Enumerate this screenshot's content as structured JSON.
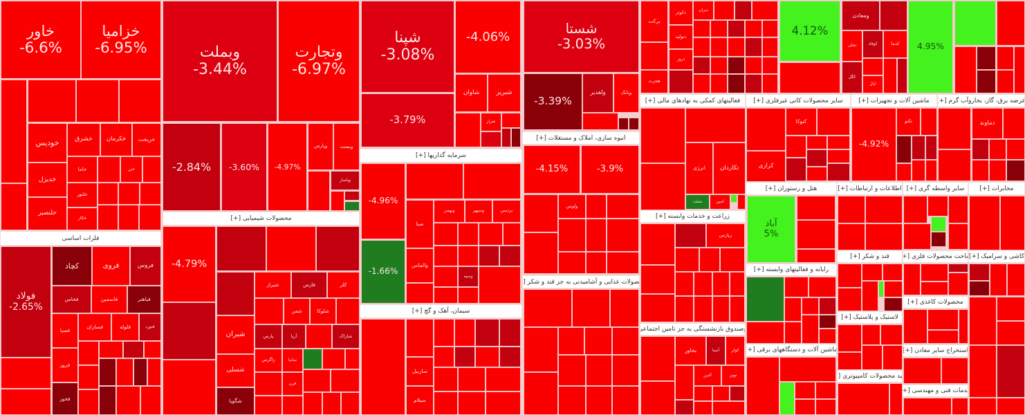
{
  "colors": {
    "r": "#fb0000",
    "m": "#dc0010",
    "d": "#c2000e",
    "x": "#8a0008",
    "g": "#1f7d1f",
    "l": "#44f21e"
  },
  "headers": [
    "فلزات اساسی",
    "محصولات شیمیایی [+]",
    "سرمایه گذاریها [+]",
    "سیمان، آهک و گچ [+]",
    "انبوه سازی، املاک و مستغلات [+]",
    "محصولات غذایی و آشامیدنی به جز قند و شکر [+]",
    "فعالیتهای کمکی به نهادهای مالی [+]",
    "سایر محصولات کانی غیرفلزی [+]",
    "ماشین آلات و تجهیزات [+]",
    "عرضه برق، گاز، بخاروآب گرم [+]",
    "هتل و رستوران [+]",
    "اطلاعات و ارتباطات [+]",
    "سایر واسطه گری [+]",
    "مخابرات [+]",
    "زراعت و خدمات وابسته [+]",
    "رایانه و فعالیتهای وابسته [+]",
    "قند و شکر [+]",
    "ساخت محصولات فلزی [+]",
    "کاشی و سرامیک [+]",
    "محصولات کاغذی [+]",
    "بیمه وصندوق بازنشستگی به جز تامین اجتماعی [+]",
    "ماشین آلات و دستگاههای برقی [+]",
    "لاستیک و پلاستیک [+]",
    "تولید محصولات کامپیوتری [+]",
    "استخراج سایر معادن [+]",
    "خدمات فنی و مهندسی [+]"
  ],
  "tiles": [
    [
      "خاور",
      "-6.6%",
      "r"
    ],
    [
      "خزامیا",
      "-6.95%",
      "r"
    ],
    [
      "",
      "",
      "r"
    ],
    [
      "",
      "",
      "r"
    ],
    [
      "",
      "",
      "r"
    ],
    [
      "",
      "",
      "r"
    ],
    [
      "",
      "",
      "r"
    ],
    [
      "خودیس",
      "",
      "r"
    ],
    [
      "خشرق",
      "",
      "r"
    ],
    [
      "خکرمان",
      "",
      "r"
    ],
    [
      "خریخت",
      "",
      "r"
    ],
    [
      "خدیزل",
      "",
      "r"
    ],
    [
      "خاما",
      "",
      "r"
    ],
    [
      "",
      "",
      "r"
    ],
    [
      "خزر",
      "",
      "r"
    ],
    [
      "",
      "",
      "r"
    ],
    [
      "خلنصیر",
      "",
      "r"
    ],
    [
      "خلتور",
      "",
      "r"
    ],
    [
      "خکار",
      "",
      "r"
    ],
    [
      "",
      "",
      "r"
    ],
    [
      "",
      "",
      "r"
    ],
    [
      "",
      "",
      "r"
    ],
    [
      "",
      "",
      "r"
    ],
    [
      "",
      "",
      "r"
    ],
    [
      "",
      "",
      "r"
    ],
    [
      "فولاد",
      "-2.65%",
      "d"
    ],
    [
      "",
      "",
      "r"
    ],
    [
      "",
      "",
      "r"
    ],
    [
      "کچاد",
      "",
      "x"
    ],
    [
      "فروی",
      "",
      "r"
    ],
    [
      "فروس",
      "",
      "d"
    ],
    [
      "فخاس",
      "",
      "d"
    ],
    [
      "فاسمین",
      "",
      "r"
    ],
    [
      "فباهنر",
      "",
      "x"
    ],
    [
      "فسپا",
      "",
      "r"
    ],
    [
      "فسازان",
      "",
      "r"
    ],
    [
      "فلوله",
      "",
      "r"
    ],
    [
      "فنورد",
      "",
      "d"
    ],
    [
      "فروز",
      "",
      "r"
    ],
    [
      "فخوز",
      "",
      "x"
    ],
    [
      "",
      "",
      "r"
    ],
    [
      "",
      "",
      "r"
    ],
    [
      "",
      "",
      "d"
    ],
    [
      "",
      "",
      "r"
    ],
    [
      "",
      "",
      "x"
    ],
    [
      "",
      "",
      "r"
    ],
    [
      "",
      "",
      "x"
    ],
    [
      "",
      "",
      "r"
    ],
    [
      "",
      "",
      "r"
    ],
    [
      "",
      "",
      "r"
    ],
    [
      "",
      "",
      "x"
    ],
    [
      "",
      "",
      "r"
    ],
    [
      "",
      "",
      "r"
    ],
    [
      "وبملت",
      "-3.44%",
      "m"
    ],
    [
      "وتجارت",
      "-6.97%",
      "r"
    ],
    [
      "",
      "-2.84%",
      "d"
    ],
    [
      "",
      "-3.60%",
      "m"
    ],
    [
      "",
      "-4.97%",
      "r"
    ],
    [
      "وپارس",
      "",
      "r"
    ],
    [
      "وبست",
      "",
      "r"
    ],
    [
      "",
      "",
      "r"
    ],
    [
      "وپاسار",
      "",
      "d"
    ],
    [
      "",
      "",
      "r"
    ],
    [
      "",
      "",
      "d"
    ],
    [
      "",
      "",
      "g"
    ],
    [
      "",
      "-4.79%",
      "r"
    ],
    [
      "",
      "",
      "d"
    ],
    [
      "",
      "",
      "r"
    ],
    [
      "",
      "",
      "d"
    ],
    [
      "",
      "",
      "r"
    ],
    [
      "",
      "",
      "d"
    ],
    [
      "",
      "",
      "d"
    ],
    [
      "شیراز",
      "",
      "r"
    ],
    [
      "فارس",
      "",
      "d"
    ],
    [
      "کلر",
      "",
      "r"
    ],
    [
      "شیران",
      "",
      "r"
    ],
    [
      "شسلی",
      "",
      "r"
    ],
    [
      "شگویا",
      "",
      "x"
    ],
    [
      "",
      "",
      "r"
    ],
    [
      "شفن",
      "",
      "r"
    ],
    [
      "شلوکا",
      "",
      "r"
    ],
    [
      "",
      "",
      "r"
    ],
    [
      "پارس",
      "",
      "d"
    ],
    [
      "آریا",
      "",
      "d"
    ],
    [
      "",
      "",
      "r"
    ],
    [
      "شاراک",
      "",
      "d"
    ],
    [
      "زاگرس",
      "",
      "r"
    ],
    [
      "ساینا",
      "",
      "r"
    ],
    [
      "",
      "",
      "g"
    ],
    [
      "",
      "",
      "r"
    ],
    [
      "",
      "",
      "r"
    ],
    [
      "",
      "",
      "r"
    ],
    [
      "فرن",
      "",
      "r"
    ],
    [
      "",
      "",
      "r"
    ],
    [
      "",
      "",
      "r"
    ],
    [
      "",
      "",
      "r"
    ],
    [
      "",
      "",
      "r"
    ],
    [
      "",
      "",
      "r"
    ],
    [
      "",
      "",
      "r"
    ],
    [
      "",
      "",
      "r"
    ],
    [
      "شپنا",
      "-3.08%",
      "m"
    ],
    [
      "",
      "-4.06%",
      "r"
    ],
    [
      "شاوان",
      "",
      "r"
    ],
    [
      "شبریز",
      "",
      "r"
    ],
    [
      "",
      "-3.79%",
      "m"
    ],
    [
      "",
      "",
      "r"
    ],
    [
      "شراز",
      "",
      "r"
    ],
    [
      "",
      "",
      "r"
    ],
    [
      "",
      "",
      "m"
    ],
    [
      "",
      "",
      "d"
    ],
    [
      "",
      "",
      "x"
    ],
    [
      "",
      "-4.96%",
      "r"
    ],
    [
      "",
      "-1.66%",
      "g"
    ],
    [
      "",
      "",
      "r"
    ],
    [
      "",
      "",
      "r"
    ],
    [
      "صبا",
      "",
      "r"
    ],
    [
      "وبهمن",
      "",
      "r"
    ],
    [
      "وسپهر",
      "",
      "r"
    ],
    [
      "بردیس",
      "",
      "r"
    ],
    [
      "",
      "",
      "r"
    ],
    [
      "",
      "",
      "r"
    ],
    [
      "",
      "",
      "r"
    ],
    [
      "",
      "",
      "r"
    ],
    [
      "والماس",
      "",
      "r"
    ],
    [
      "",
      "",
      "r"
    ],
    [
      "",
      "",
      "r"
    ],
    [
      "",
      "",
      "d"
    ],
    [
      "",
      "",
      "d"
    ],
    [
      "",
      "",
      "r"
    ],
    [
      "وسپه",
      "",
      "d"
    ],
    [
      "",
      "",
      "r"
    ],
    [
      "",
      "",
      "r"
    ],
    [
      "",
      "",
      "r"
    ],
    [
      "",
      "",
      "r"
    ],
    [
      "",
      "",
      "r"
    ],
    [
      "",
      "",
      "r"
    ],
    [
      "",
      "",
      "r"
    ],
    [
      "",
      "",
      "r"
    ],
    [
      "",
      "",
      "d"
    ],
    [
      "",
      "",
      "d"
    ],
    [
      "",
      "",
      "r"
    ],
    [
      "",
      "",
      "d"
    ],
    [
      "",
      "",
      "r"
    ],
    [
      "",
      "",
      "d"
    ],
    [
      "ساربیل",
      "",
      "r"
    ],
    [
      "سیلام",
      "",
      "r"
    ],
    [
      "",
      "",
      "r"
    ],
    [
      "",
      "",
      "r"
    ],
    [
      "",
      "",
      "r"
    ],
    [
      "",
      "",
      "r"
    ],
    [
      "",
      "",
      "r"
    ],
    [
      "",
      "",
      "r"
    ],
    [
      "شستا",
      "-3.03%",
      "m"
    ],
    [
      "",
      "-3.39%",
      "x"
    ],
    [
      "ولغدیر",
      "",
      "d"
    ],
    [
      "وبانک",
      "",
      "r"
    ],
    [
      "",
      "",
      "r"
    ],
    [
      "",
      "",
      "x"
    ],
    [
      "",
      "",
      "x"
    ],
    [
      "",
      "-4.15%",
      "r"
    ],
    [
      "",
      "-3.9%",
      "r"
    ],
    [
      "",
      "",
      "r"
    ],
    [
      "",
      "",
      "r"
    ],
    [
      "ولوس",
      "",
      "r"
    ],
    [
      "",
      "",
      "r"
    ],
    [
      "",
      "",
      "r"
    ],
    [
      "",
      "",
      "r"
    ],
    [
      "",
      "",
      "r"
    ],
    [
      "",
      "",
      "r"
    ],
    [
      "",
      "",
      "r"
    ],
    [
      "",
      "",
      "r"
    ],
    [
      "",
      "",
      "r"
    ],
    [
      "",
      "",
      "r"
    ],
    [
      "",
      "",
      "r"
    ],
    [
      "",
      "",
      "r"
    ],
    [
      "",
      "",
      "r"
    ],
    [
      "",
      "",
      "r"
    ],
    [
      "",
      "",
      "r"
    ],
    [
      "",
      "",
      "r"
    ],
    [
      "",
      "",
      "r"
    ],
    [
      "",
      "",
      "r"
    ],
    [
      "",
      "",
      "r"
    ],
    [
      "",
      "",
      "r"
    ],
    [
      "",
      "",
      "r"
    ],
    [
      "",
      "",
      "r"
    ],
    [
      "",
      "",
      "r"
    ],
    [
      "برکت",
      "",
      "r"
    ],
    [
      "",
      "",
      "r"
    ],
    [
      "هجرت",
      "",
      "r"
    ],
    [
      "دکوثر",
      "",
      "r"
    ],
    [
      "دتولید",
      "",
      "r"
    ],
    [
      "دروز",
      "",
      "r"
    ],
    [
      "",
      "",
      "d"
    ],
    [
      "دیران",
      "",
      "r"
    ],
    [
      "",
      "",
      "r"
    ],
    [
      "",
      "",
      "d"
    ],
    [
      "",
      "",
      "r"
    ],
    [
      "",
      "",
      "r"
    ],
    [
      "",
      "",
      "r"
    ],
    [
      "",
      "",
      "d"
    ],
    [
      "",
      "",
      "r"
    ],
    [
      "",
      "",
      "r"
    ],
    [
      "",
      "",
      "r"
    ],
    [
      "",
      "",
      "r"
    ],
    [
      "",
      "",
      "r"
    ],
    [
      "",
      "",
      "d"
    ],
    [
      "",
      "",
      "r"
    ],
    [
      "",
      "",
      "d"
    ],
    [
      "",
      "",
      "r"
    ],
    [
      "",
      "",
      "x"
    ],
    [
      "",
      "",
      "r"
    ],
    [
      "",
      "",
      "r"
    ],
    [
      "",
      "",
      "r"
    ],
    [
      "",
      "",
      "r"
    ],
    [
      "",
      "",
      "x"
    ],
    [
      "",
      "",
      "d"
    ],
    [
      "",
      "",
      "r"
    ],
    [
      "",
      "4.12%",
      "l"
    ],
    [
      "",
      "",
      "r"
    ],
    [
      "ومعادن",
      "",
      "d"
    ],
    [
      "",
      "",
      "d"
    ],
    [
      "تجلی",
      "",
      "r"
    ],
    [
      "کوفاد",
      "",
      "d"
    ],
    [
      "کدما",
      "",
      "r"
    ],
    [
      "کگل",
      "",
      "d"
    ],
    [
      "",
      "",
      "r"
    ],
    [
      "ایال",
      "",
      "r"
    ],
    [
      "",
      "",
      "r"
    ],
    [
      "",
      "",
      "d"
    ],
    [
      "",
      "4.95%",
      "l"
    ],
    [
      "",
      "",
      "l"
    ],
    [
      "",
      "",
      "r"
    ],
    [
      "",
      "",
      "x"
    ],
    [
      "",
      "",
      "x"
    ],
    [
      "",
      "",
      "r"
    ],
    [
      "",
      "",
      "r"
    ],
    [
      "",
      "",
      "r"
    ],
    [
      "",
      "",
      "r"
    ],
    [
      "",
      "",
      "r"
    ],
    [
      "",
      "",
      "r"
    ],
    [
      "",
      "",
      "r"
    ],
    [
      "انرژی",
      "",
      "r"
    ],
    [
      "تکاردان",
      "",
      "r"
    ],
    [
      "تملت",
      "",
      "g"
    ],
    [
      "امین",
      "",
      "r"
    ],
    [
      "",
      "",
      "l"
    ],
    [
      "",
      "",
      "r"
    ],
    [
      "",
      "",
      "r"
    ],
    [
      "کرازی",
      "",
      "r"
    ],
    [
      "کنوکا",
      "",
      "r"
    ],
    [
      "",
      "",
      "r"
    ],
    [
      "",
      "",
      "r"
    ],
    [
      "",
      "",
      "r"
    ],
    [
      "",
      "",
      "r"
    ],
    [
      "",
      "",
      "d"
    ],
    [
      "",
      "",
      "r"
    ],
    [
      "",
      "",
      "d"
    ],
    [
      "",
      "",
      "r"
    ],
    [
      "",
      "",
      "d"
    ],
    [
      "",
      "-4.92%",
      "r"
    ],
    [
      "تکنو",
      "",
      "r"
    ],
    [
      "",
      "",
      "r"
    ],
    [
      "",
      "",
      "x"
    ],
    [
      "",
      "",
      "d"
    ],
    [
      "",
      "",
      "d"
    ],
    [
      "",
      "",
      "r"
    ],
    [
      "",
      "",
      "r"
    ],
    [
      "",
      "",
      "r"
    ],
    [
      "",
      "",
      "r"
    ],
    [
      "",
      "",
      "r"
    ],
    [
      "دماوند",
      "",
      "r"
    ],
    [
      "",
      "",
      "r"
    ],
    [
      "",
      "",
      "d"
    ],
    [
      "",
      "",
      "r"
    ],
    [
      "",
      "",
      "r"
    ],
    [
      "",
      "",
      "r"
    ],
    [
      "",
      "",
      "r"
    ],
    [
      "",
      "",
      "x"
    ],
    [
      "",
      "",
      "r"
    ],
    [
      "",
      "",
      "r"
    ],
    [
      "",
      "",
      "r"
    ],
    [
      "",
      "",
      "d"
    ],
    [
      "زپارس",
      "",
      "r"
    ],
    [
      "",
      "",
      "r"
    ],
    [
      "",
      "",
      "r"
    ],
    [
      "",
      "",
      "r"
    ],
    [
      "",
      "",
      "r"
    ],
    [
      "",
      "",
      "r"
    ],
    [
      "",
      "",
      "r"
    ],
    [
      "",
      "",
      "r"
    ],
    [
      "",
      "",
      "r"
    ],
    [
      "",
      "",
      "r"
    ],
    [
      "",
      "",
      "r"
    ],
    [
      "",
      "",
      "r"
    ],
    [
      "",
      "",
      "r"
    ],
    [
      "",
      "",
      "r"
    ],
    [
      "بخاور",
      "",
      "r"
    ],
    [
      "آسیا",
      "",
      "d"
    ],
    [
      "کولر",
      "",
      "r"
    ],
    [
      "",
      "",
      "r"
    ],
    [
      "البرز",
      "",
      "r"
    ],
    [
      "نوین",
      "",
      "r"
    ],
    [
      "",
      "",
      "r"
    ],
    [
      "",
      "",
      "r"
    ],
    [
      "",
      "",
      "d"
    ],
    [
      "",
      "",
      "d"
    ],
    [
      "",
      "",
      "r"
    ],
    [
      "",
      "",
      "r"
    ],
    [
      "آباد",
      "5%",
      "l"
    ],
    [
      "",
      "",
      "r"
    ],
    [
      "",
      "",
      "r"
    ],
    [
      "",
      "",
      "r"
    ],
    [
      "",
      "",
      "g"
    ],
    [
      "",
      "",
      "r"
    ],
    [
      "",
      "",
      "r"
    ],
    [
      "",
      "",
      "r"
    ],
    [
      "",
      "",
      "r"
    ],
    [
      "",
      "",
      "r"
    ],
    [
      "",
      "",
      "d"
    ],
    [
      "",
      "",
      "r"
    ],
    [
      "",
      "",
      "x"
    ],
    [
      "",
      "",
      "r"
    ],
    [
      "",
      "",
      "r"
    ],
    [
      "",
      "",
      "r"
    ],
    [
      "",
      "",
      "r"
    ],
    [
      "",
      "",
      "l"
    ],
    [
      "",
      "",
      "r"
    ],
    [
      "",
      "",
      "r"
    ],
    [
      "",
      "",
      "r"
    ],
    [
      "",
      "",
      "r"
    ],
    [
      "",
      "",
      "r"
    ],
    [
      "",
      "",
      "r"
    ],
    [
      "",
      "",
      "r"
    ],
    [
      "",
      "",
      "r"
    ],
    [
      "",
      "",
      "r"
    ],
    [
      "",
      "",
      "r"
    ],
    [
      "",
      "",
      "r"
    ],
    [
      "",
      "",
      "r"
    ],
    [
      "",
      "",
      "r"
    ],
    [
      "",
      "",
      "l"
    ],
    [
      "",
      "",
      "r"
    ],
    [
      "",
      "",
      "x"
    ],
    [
      "",
      "",
      "r"
    ],
    [
      "",
      "",
      "r"
    ],
    [
      "",
      "",
      "r"
    ],
    [
      "",
      "",
      "r"
    ],
    [
      "",
      "",
      "r"
    ],
    [
      "",
      "",
      "r"
    ],
    [
      "",
      "",
      "r"
    ],
    [
      "",
      "",
      "r"
    ],
    [
      "",
      "",
      "r"
    ],
    [
      "",
      "",
      "r"
    ],
    [
      "",
      "",
      "l"
    ],
    [
      "",
      "",
      "x"
    ],
    [
      "",
      "",
      "r"
    ],
    [
      "",
      "",
      "r"
    ],
    [
      "",
      "",
      "r"
    ],
    [
      "",
      "",
      "r"
    ],
    [
      "",
      "",
      "r"
    ],
    [
      "",
      "",
      "d"
    ],
    [
      "",
      "",
      "r"
    ],
    [
      "",
      "",
      "r"
    ],
    [
      "",
      "",
      "r"
    ],
    [
      "",
      "",
      "r"
    ],
    [
      "",
      "",
      "r"
    ],
    [
      "",
      "",
      "r"
    ],
    [
      "",
      "",
      "r"
    ],
    [
      "",
      "",
      "r"
    ],
    [
      "",
      "",
      "r"
    ],
    [
      "",
      "",
      "r"
    ],
    [
      "",
      "",
      "r"
    ],
    [
      "",
      "",
      "r"
    ],
    [
      "",
      "",
      "d"
    ],
    [
      "",
      "",
      "x"
    ],
    [
      "",
      "",
      "r"
    ],
    [
      "",
      "",
      "r"
    ],
    [
      "",
      "",
      "r"
    ],
    [
      "",
      "",
      "r"
    ],
    [
      "",
      "",
      "r"
    ],
    [
      "",
      "",
      "r"
    ],
    [
      "",
      "",
      "d"
    ],
    [
      "",
      "",
      "r"
    ],
    [
      "",
      "",
      "r"
    ]
  ]
}
